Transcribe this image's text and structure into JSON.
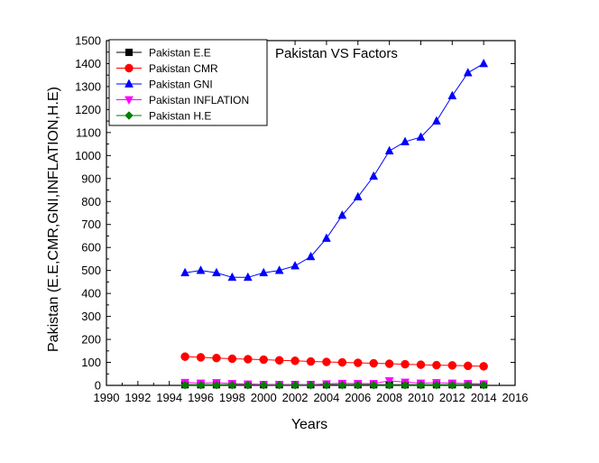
{
  "chart_data": {
    "type": "line",
    "title": "Pakistan VS Factors",
    "xlabel": "Years",
    "ylabel": "Pakistan (E.E,CMR,GNI,INFLATION,H.E)",
    "xlim": [
      1990,
      2016
    ],
    "ylim": [
      0,
      1500
    ],
    "xticks": [
      "1990",
      "1992",
      "1994",
      "1996",
      "1998",
      "2000",
      "2002",
      "2004",
      "2006",
      "2008",
      "2010",
      "2012",
      "2014",
      "2016"
    ],
    "yticks": [
      "0",
      "100",
      "200",
      "300",
      "400",
      "500",
      "600",
      "700",
      "800",
      "900",
      "1000",
      "1100",
      "1200",
      "1300",
      "1400",
      "1500"
    ],
    "legend_position": "top-left",
    "grid": false,
    "x": [
      1995,
      1996,
      1997,
      1998,
      1999,
      2000,
      2001,
      2002,
      2003,
      2004,
      2005,
      2006,
      2007,
      2008,
      2009,
      2010,
      2011,
      2012,
      2013,
      2014
    ],
    "series": [
      {
        "name": "Pakistan E.E",
        "color": "#000000",
        "marker": "square",
        "values": [
          3,
          3,
          3,
          3,
          3,
          3,
          3,
          3,
          3,
          3,
          3,
          3,
          3,
          3,
          3,
          3,
          3,
          3,
          3,
          3
        ]
      },
      {
        "name": "Pakistan CMR",
        "color": "#ff0000",
        "marker": "circle",
        "values": [
          125,
          122,
          119,
          116,
          114,
          112,
          109,
          107,
          104,
          102,
          100,
          98,
          96,
          94,
          92,
          90,
          88,
          87,
          85,
          83
        ]
      },
      {
        "name": "Pakistan GNI",
        "color": "#0000ff",
        "marker": "triangle-up",
        "values": [
          490,
          500,
          490,
          470,
          470,
          490,
          500,
          520,
          560,
          640,
          740,
          820,
          910,
          1020,
          1060,
          1080,
          1150,
          1260,
          1360,
          1400
        ]
      },
      {
        "name": "Pakistan INFLATION",
        "color": "#ff00ff",
        "marker": "triangle-down",
        "values": [
          13,
          10,
          12,
          8,
          6,
          4,
          4,
          3,
          3,
          7,
          9,
          8,
          8,
          20,
          14,
          10,
          12,
          10,
          8,
          7
        ]
      },
      {
        "name": "Pakistan H.E",
        "color": "#008000",
        "marker": "diamond",
        "values": [
          1,
          1,
          1,
          1,
          1,
          1,
          1,
          1,
          1,
          1,
          1,
          1,
          1,
          1,
          1,
          1,
          1,
          1,
          1,
          1
        ]
      }
    ]
  }
}
